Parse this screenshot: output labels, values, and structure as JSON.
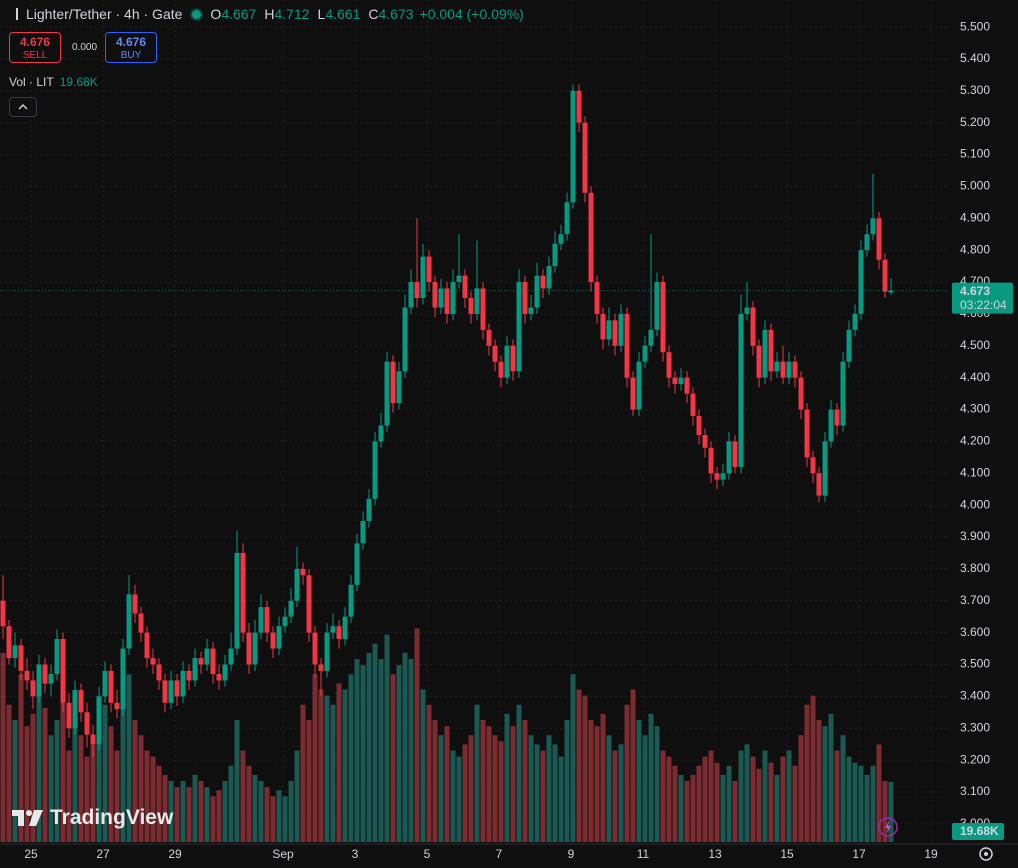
{
  "chart_data": {
    "type": "candlestick",
    "title": "Lighter/Tether · 4h · Gate",
    "ohlc_labels": [
      "O",
      "H",
      "L",
      "C"
    ],
    "change": "+0.004 (+0.09%)",
    "sell": {
      "price": 4.676,
      "label": "SELL"
    },
    "spread": "0.000",
    "buy": {
      "price": 4.676,
      "label": "BUY"
    },
    "countdown": "03:22:04",
    "watermark": "TradingView",
    "up_color": "#089981",
    "down_color": "#f23645",
    "grid": true,
    "ylim": [
      2.943,
      5.585
    ],
    "yticks": [
      {
        "value": 3.0,
        "label": "3.000"
      },
      {
        "value": 3.1,
        "label": "3.100"
      },
      {
        "value": 3.2,
        "label": "3.200"
      },
      {
        "value": 3.3,
        "label": "3.300"
      },
      {
        "value": 3.4,
        "label": "3.400"
      },
      {
        "value": 3.5,
        "label": "3.500"
      },
      {
        "value": 3.6,
        "label": "3.600"
      },
      {
        "value": 3.7,
        "label": "3.700"
      },
      {
        "value": 3.8,
        "label": "3.800"
      },
      {
        "value": 3.9,
        "label": "3.900"
      },
      {
        "value": 4.0,
        "label": "4.000"
      },
      {
        "value": 4.1,
        "label": "4.100"
      },
      {
        "value": 4.2,
        "label": "4.200"
      },
      {
        "value": 4.3,
        "label": "4.300"
      },
      {
        "value": 4.4,
        "label": "4.400"
      },
      {
        "value": 4.5,
        "label": "4.500"
      },
      {
        "value": 4.6,
        "label": "4.600"
      },
      {
        "value": 4.7,
        "label": "4.700"
      },
      {
        "value": 4.8,
        "label": "4.800"
      },
      {
        "value": 4.9,
        "label": "4.900"
      },
      {
        "value": 5.0,
        "label": "5.000"
      },
      {
        "value": 5.1,
        "label": "5.100"
      },
      {
        "value": 5.2,
        "label": "5.200"
      },
      {
        "value": 5.3,
        "label": "5.300"
      },
      {
        "value": 5.4,
        "label": "5.400"
      },
      {
        "value": 5.5,
        "label": "5.500"
      }
    ],
    "x_labels": [
      "25",
      "27",
      "29",
      "Sep",
      "3",
      "5",
      "7",
      "9",
      "11",
      "13",
      "15",
      "17",
      "19"
    ],
    "ohlc": [
      [
        3.7,
        3.78,
        3.58,
        3.62
      ],
      [
        3.62,
        3.64,
        3.5,
        3.52
      ],
      [
        3.52,
        3.6,
        3.49,
        3.56
      ],
      [
        3.56,
        3.58,
        3.45,
        3.48
      ],
      [
        3.48,
        3.52,
        3.42,
        3.45
      ],
      [
        3.45,
        3.48,
        3.36,
        3.4
      ],
      [
        3.4,
        3.53,
        3.38,
        3.5
      ],
      [
        3.5,
        3.52,
        3.41,
        3.44
      ],
      [
        3.44,
        3.5,
        3.4,
        3.47
      ],
      [
        3.47,
        3.61,
        3.45,
        3.58
      ],
      [
        3.58,
        3.6,
        3.35,
        3.38
      ],
      [
        3.38,
        3.41,
        3.27,
        3.3
      ],
      [
        3.3,
        3.45,
        3.28,
        3.42
      ],
      [
        3.42,
        3.44,
        3.32,
        3.35
      ],
      [
        3.35,
        3.38,
        3.24,
        3.28
      ],
      [
        3.28,
        3.31,
        3.21,
        3.25
      ],
      [
        3.25,
        3.43,
        3.23,
        3.4
      ],
      [
        3.4,
        3.51,
        3.38,
        3.48
      ],
      [
        3.48,
        3.5,
        3.35,
        3.38
      ],
      [
        3.38,
        3.42,
        3.33,
        3.36
      ],
      [
        3.36,
        3.58,
        3.34,
        3.55
      ],
      [
        3.55,
        3.78,
        3.53,
        3.72
      ],
      [
        3.72,
        3.75,
        3.63,
        3.66
      ],
      [
        3.66,
        3.68,
        3.57,
        3.6
      ],
      [
        3.6,
        3.62,
        3.49,
        3.52
      ],
      [
        3.52,
        3.55,
        3.47,
        3.5
      ],
      [
        3.5,
        3.52,
        3.42,
        3.45
      ],
      [
        3.45,
        3.47,
        3.35,
        3.38
      ],
      [
        3.38,
        3.48,
        3.36,
        3.45
      ],
      [
        3.45,
        3.47,
        3.37,
        3.4
      ],
      [
        3.4,
        3.51,
        3.38,
        3.48
      ],
      [
        3.48,
        3.5,
        3.42,
        3.45
      ],
      [
        3.45,
        3.55,
        3.43,
        3.52
      ],
      [
        3.52,
        3.54,
        3.47,
        3.5
      ],
      [
        3.5,
        3.58,
        3.48,
        3.55
      ],
      [
        3.55,
        3.57,
        3.44,
        3.47
      ],
      [
        3.47,
        3.5,
        3.42,
        3.45
      ],
      [
        3.45,
        3.53,
        3.43,
        3.5
      ],
      [
        3.5,
        3.6,
        3.48,
        3.55
      ],
      [
        3.55,
        3.92,
        3.53,
        3.85
      ],
      [
        3.85,
        3.88,
        3.57,
        3.6
      ],
      [
        3.6,
        3.63,
        3.47,
        3.5
      ],
      [
        3.5,
        3.64,
        3.48,
        3.6
      ],
      [
        3.6,
        3.72,
        3.58,
        3.68
      ],
      [
        3.68,
        3.7,
        3.57,
        3.6
      ],
      [
        3.6,
        3.62,
        3.52,
        3.55
      ],
      [
        3.55,
        3.65,
        3.53,
        3.62
      ],
      [
        3.62,
        3.68,
        3.6,
        3.65
      ],
      [
        3.65,
        3.74,
        3.63,
        3.7
      ],
      [
        3.7,
        3.87,
        3.68,
        3.8
      ],
      [
        3.8,
        3.82,
        3.75,
        3.78
      ],
      [
        3.78,
        3.8,
        3.57,
        3.6
      ],
      [
        3.6,
        3.62,
        3.46,
        3.5
      ],
      [
        3.5,
        3.52,
        3.4,
        3.48
      ],
      [
        3.48,
        3.63,
        3.46,
        3.6
      ],
      [
        3.6,
        3.66,
        3.58,
        3.62
      ],
      [
        3.62,
        3.64,
        3.55,
        3.58
      ],
      [
        3.58,
        3.68,
        3.56,
        3.65
      ],
      [
        3.65,
        3.78,
        3.63,
        3.75
      ],
      [
        3.75,
        3.91,
        3.73,
        3.88
      ],
      [
        3.88,
        3.98,
        3.86,
        3.95
      ],
      [
        3.95,
        4.05,
        3.93,
        4.02
      ],
      [
        4.02,
        4.23,
        4.0,
        4.2
      ],
      [
        4.2,
        4.29,
        4.18,
        4.25
      ],
      [
        4.25,
        4.48,
        4.23,
        4.45
      ],
      [
        4.45,
        4.47,
        4.29,
        4.32
      ],
      [
        4.32,
        4.45,
        4.3,
        4.42
      ],
      [
        4.42,
        4.66,
        4.4,
        4.62
      ],
      [
        4.62,
        4.74,
        4.6,
        4.7
      ],
      [
        4.7,
        4.9,
        4.62,
        4.65
      ],
      [
        4.65,
        4.82,
        4.63,
        4.78
      ],
      [
        4.78,
        4.8,
        4.67,
        4.7
      ],
      [
        4.7,
        4.72,
        4.59,
        4.62
      ],
      [
        4.62,
        4.71,
        4.6,
        4.68
      ],
      [
        4.68,
        4.7,
        4.57,
        4.6
      ],
      [
        4.6,
        4.74,
        4.58,
        4.7
      ],
      [
        4.7,
        4.85,
        4.68,
        4.72
      ],
      [
        4.72,
        4.74,
        4.62,
        4.65
      ],
      [
        4.65,
        4.67,
        4.57,
        4.6
      ],
      [
        4.6,
        4.83,
        4.58,
        4.68
      ],
      [
        4.68,
        4.7,
        4.52,
        4.55
      ],
      [
        4.55,
        4.57,
        4.47,
        4.5
      ],
      [
        4.5,
        4.52,
        4.42,
        4.45
      ],
      [
        4.45,
        4.47,
        4.37,
        4.4
      ],
      [
        4.4,
        4.53,
        4.38,
        4.5
      ],
      [
        4.5,
        4.52,
        4.39,
        4.42
      ],
      [
        4.42,
        4.74,
        4.4,
        4.7
      ],
      [
        4.7,
        4.72,
        4.57,
        4.6
      ],
      [
        4.6,
        4.66,
        4.58,
        4.62
      ],
      [
        4.62,
        4.76,
        4.6,
        4.72
      ],
      [
        4.72,
        4.74,
        4.65,
        4.68
      ],
      [
        4.68,
        4.78,
        4.66,
        4.75
      ],
      [
        4.75,
        4.86,
        4.73,
        4.82
      ],
      [
        4.82,
        4.88,
        4.8,
        4.85
      ],
      [
        4.85,
        4.98,
        4.83,
        4.95
      ],
      [
        4.95,
        5.32,
        4.93,
        5.3
      ],
      [
        5.3,
        5.32,
        5.17,
        5.2
      ],
      [
        5.2,
        5.22,
        4.95,
        4.98
      ],
      [
        4.98,
        5.0,
        4.67,
        4.7
      ],
      [
        4.7,
        4.72,
        4.57,
        4.6
      ],
      [
        4.6,
        4.62,
        4.49,
        4.52
      ],
      [
        4.52,
        4.62,
        4.5,
        4.58
      ],
      [
        4.58,
        4.6,
        4.47,
        4.5
      ],
      [
        4.5,
        4.63,
        4.48,
        4.6
      ],
      [
        4.6,
        4.62,
        4.37,
        4.4
      ],
      [
        4.4,
        4.42,
        4.28,
        4.3
      ],
      [
        4.3,
        4.48,
        4.28,
        4.45
      ],
      [
        4.45,
        4.53,
        4.43,
        4.5
      ],
      [
        4.5,
        4.85,
        4.48,
        4.55
      ],
      [
        4.55,
        4.73,
        4.53,
        4.7
      ],
      [
        4.7,
        4.72,
        4.45,
        4.48
      ],
      [
        4.48,
        4.5,
        4.37,
        4.4
      ],
      [
        4.4,
        4.42,
        4.35,
        4.38
      ],
      [
        4.38,
        4.43,
        4.36,
        4.4
      ],
      [
        4.4,
        4.42,
        4.32,
        4.35
      ],
      [
        4.35,
        4.37,
        4.25,
        4.28
      ],
      [
        4.28,
        4.3,
        4.19,
        4.22
      ],
      [
        4.22,
        4.24,
        4.15,
        4.18
      ],
      [
        4.18,
        4.2,
        4.07,
        4.1
      ],
      [
        4.1,
        4.12,
        4.05,
        4.08
      ],
      [
        4.08,
        4.13,
        4.06,
        4.1
      ],
      [
        4.1,
        4.23,
        4.08,
        4.2
      ],
      [
        4.2,
        4.22,
        4.1,
        4.12
      ],
      [
        4.12,
        4.66,
        4.1,
        4.6
      ],
      [
        4.6,
        4.7,
        4.58,
        4.62
      ],
      [
        4.62,
        4.64,
        4.47,
        4.5
      ],
      [
        4.5,
        4.52,
        4.37,
        4.4
      ],
      [
        4.4,
        4.58,
        4.38,
        4.55
      ],
      [
        4.55,
        4.57,
        4.39,
        4.42
      ],
      [
        4.42,
        4.48,
        4.4,
        4.45
      ],
      [
        4.45,
        4.5,
        4.38,
        4.4
      ],
      [
        4.4,
        4.48,
        4.38,
        4.45
      ],
      [
        4.45,
        4.47,
        4.37,
        4.4
      ],
      [
        4.4,
        4.42,
        4.27,
        4.3
      ],
      [
        4.3,
        4.32,
        4.12,
        4.15
      ],
      [
        4.15,
        4.17,
        4.07,
        4.1
      ],
      [
        4.1,
        4.12,
        4.01,
        4.03
      ],
      [
        4.03,
        4.23,
        4.01,
        4.2
      ],
      [
        4.2,
        4.33,
        4.18,
        4.3
      ],
      [
        4.3,
        4.32,
        4.22,
        4.25
      ],
      [
        4.25,
        4.48,
        4.23,
        4.45
      ],
      [
        4.45,
        4.58,
        4.43,
        4.55
      ],
      [
        4.55,
        4.63,
        4.53,
        4.6
      ],
      [
        4.6,
        4.83,
        4.58,
        4.8
      ],
      [
        4.8,
        4.88,
        4.78,
        4.85
      ],
      [
        4.85,
        5.04,
        4.83,
        4.9
      ],
      [
        4.9,
        4.92,
        4.74,
        4.77
      ],
      [
        4.77,
        4.79,
        4.65,
        4.67
      ],
      [
        4.667,
        4.712,
        4.661,
        4.673
      ]
    ],
    "volume": {
      "name": "Vol · LIT",
      "up_color": "#1b5a53",
      "down_color": "#7c2b31",
      "last_value_label": "19.68K",
      "values": [
        62,
        45,
        40,
        55,
        38,
        42,
        50,
        44,
        35,
        40,
        48,
        30,
        42,
        35,
        28,
        32,
        40,
        45,
        38,
        30,
        50,
        55,
        40,
        35,
        30,
        28,
        25,
        22,
        20,
        18,
        20,
        18,
        22,
        20,
        18,
        15,
        17,
        20,
        25,
        40,
        30,
        25,
        22,
        20,
        18,
        15,
        17,
        15,
        20,
        30,
        45,
        40,
        55,
        50,
        48,
        45,
        52,
        50,
        55,
        60,
        58,
        62,
        65,
        60,
        68,
        55,
        58,
        62,
        60,
        70,
        50,
        45,
        40,
        35,
        38,
        30,
        28,
        32,
        35,
        45,
        40,
        38,
        35,
        33,
        42,
        38,
        45,
        40,
        35,
        32,
        30,
        35,
        32,
        28,
        40,
        55,
        50,
        48,
        40,
        38,
        42,
        35,
        30,
        32,
        45,
        50,
        40,
        35,
        42,
        38,
        30,
        28,
        25,
        22,
        20,
        22,
        25,
        28,
        30,
        26,
        22,
        25,
        20,
        30,
        32,
        28,
        24,
        30,
        26,
        22,
        28,
        30,
        25,
        35,
        45,
        48,
        40,
        38,
        42,
        30,
        35,
        28,
        26,
        25,
        22,
        25,
        32,
        20,
        19.68
      ]
    }
  }
}
